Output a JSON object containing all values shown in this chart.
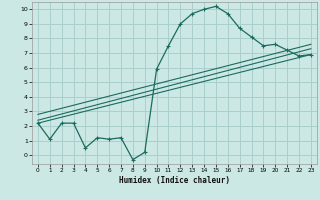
{
  "xlabel": "Humidex (Indice chaleur)",
  "bg_color": "#cce8e4",
  "grid_color": "#aacfcc",
  "line_color": "#1a6b5e",
  "xlim": [
    -0.5,
    23.5
  ],
  "ylim": [
    -0.6,
    10.5
  ],
  "xticks": [
    0,
    1,
    2,
    3,
    4,
    5,
    6,
    7,
    8,
    9,
    10,
    11,
    12,
    13,
    14,
    15,
    16,
    17,
    18,
    19,
    20,
    21,
    22,
    23
  ],
  "yticks": [
    0,
    1,
    2,
    3,
    4,
    5,
    6,
    7,
    8,
    9,
    10
  ],
  "curve1_x": [
    0,
    1,
    2,
    3,
    4,
    5,
    6,
    7,
    8,
    9,
    10,
    11,
    12,
    13,
    14,
    15,
    16,
    17,
    18,
    19,
    20,
    21,
    22,
    23
  ],
  "curve1_y": [
    2.2,
    1.1,
    2.2,
    2.2,
    0.5,
    1.2,
    1.1,
    1.2,
    -0.3,
    0.2,
    5.9,
    7.5,
    9.0,
    9.7,
    10.0,
    10.2,
    9.7,
    8.7,
    8.1,
    7.5,
    7.6,
    7.2,
    6.8,
    6.9
  ],
  "line1_x": [
    0,
    23
  ],
  "line1_y": [
    2.2,
    6.9
  ],
  "line2_x": [
    0,
    23
  ],
  "line2_y": [
    2.4,
    7.3
  ],
  "line3_x": [
    0,
    23
  ],
  "line3_y": [
    2.8,
    7.6
  ]
}
